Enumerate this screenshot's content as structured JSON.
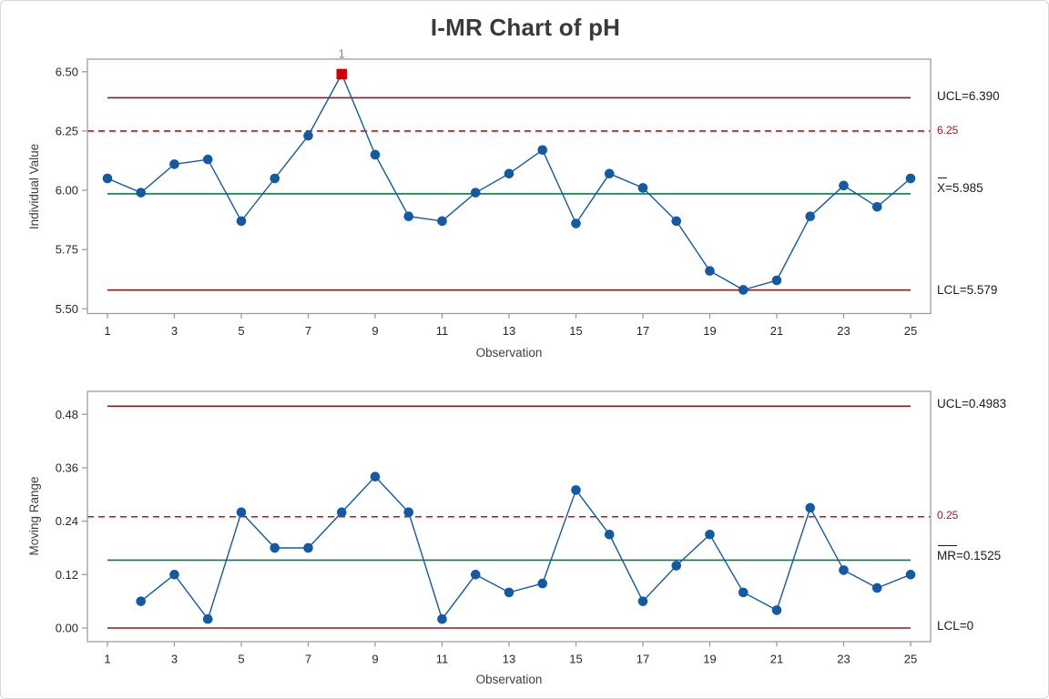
{
  "title": "I-MR Chart of pH",
  "colors": {
    "series": "#1259a6",
    "center_line": "#008040",
    "control_line": "#8e1b1b",
    "ref_line": "#c41111",
    "ref_label": "#9a1c20",
    "out_marker": "#cc0000",
    "frame": "#9e9e9e",
    "tick_label": "#262626",
    "flag_label": "#808080"
  },
  "chart_data": [
    {
      "type": "line",
      "name": "individuals-chart",
      "ylabel": "Individual Value",
      "xlabel": "Observation",
      "x": [
        1,
        2,
        3,
        4,
        5,
        6,
        7,
        8,
        9,
        10,
        11,
        12,
        13,
        14,
        15,
        16,
        17,
        18,
        19,
        20,
        21,
        22,
        23,
        24,
        25
      ],
      "values": [
        6.05,
        5.99,
        6.11,
        6.13,
        5.87,
        6.05,
        6.23,
        6.49,
        6.15,
        5.89,
        5.87,
        5.99,
        6.07,
        6.17,
        5.86,
        6.07,
        6.01,
        5.87,
        5.66,
        5.58,
        5.62,
        5.89,
        6.02,
        5.93,
        6.05
      ],
      "center": 5.985,
      "ucl": 6.39,
      "lcl": 5.579,
      "ref": 6.25,
      "ylim": [
        5.48,
        6.553
      ],
      "grid": false,
      "legend": "none",
      "yticks": [
        "5.50",
        "5.75",
        "6.00",
        "6.25",
        "6.50"
      ],
      "xticks": [
        1,
        3,
        5,
        7,
        9,
        11,
        13,
        15,
        17,
        19,
        21,
        23,
        25
      ],
      "labels": {
        "ucl": "UCL=6.390",
        "center": "X=5.985",
        "lcl": "LCL=5.579",
        "ref": "6.25"
      },
      "out_of_control": [
        {
          "x": 8,
          "label": "1"
        }
      ]
    },
    {
      "type": "line",
      "name": "moving-range-chart",
      "ylabel": "Moving Range",
      "xlabel": "Observation",
      "x": [
        1,
        2,
        3,
        4,
        5,
        6,
        7,
        8,
        9,
        10,
        11,
        12,
        13,
        14,
        15,
        16,
        17,
        18,
        19,
        20,
        21,
        22,
        23,
        24,
        25
      ],
      "values": [
        null,
        0.06,
        0.12,
        0.02,
        0.26,
        0.18,
        0.18,
        0.26,
        0.34,
        0.26,
        0.02,
        0.12,
        0.08,
        0.1,
        0.31,
        0.21,
        0.06,
        0.14,
        0.21,
        0.08,
        0.04,
        0.27,
        0.13,
        0.09,
        0.12
      ],
      "center": 0.1525,
      "ucl": 0.4983,
      "lcl": 0,
      "ref": 0.25,
      "ylim": [
        -0.0307,
        0.5317
      ],
      "grid": false,
      "legend": "none",
      "yticks": [
        "0.00",
        "0.12",
        "0.24",
        "0.36",
        "0.48"
      ],
      "xticks": [
        1,
        3,
        5,
        7,
        9,
        11,
        13,
        15,
        17,
        19,
        21,
        23,
        25
      ],
      "labels": {
        "ucl": "UCL=0.4983",
        "center": "MR=0.1525",
        "lcl": "LCL=0",
        "ref": "0.25"
      },
      "out_of_control": []
    }
  ]
}
